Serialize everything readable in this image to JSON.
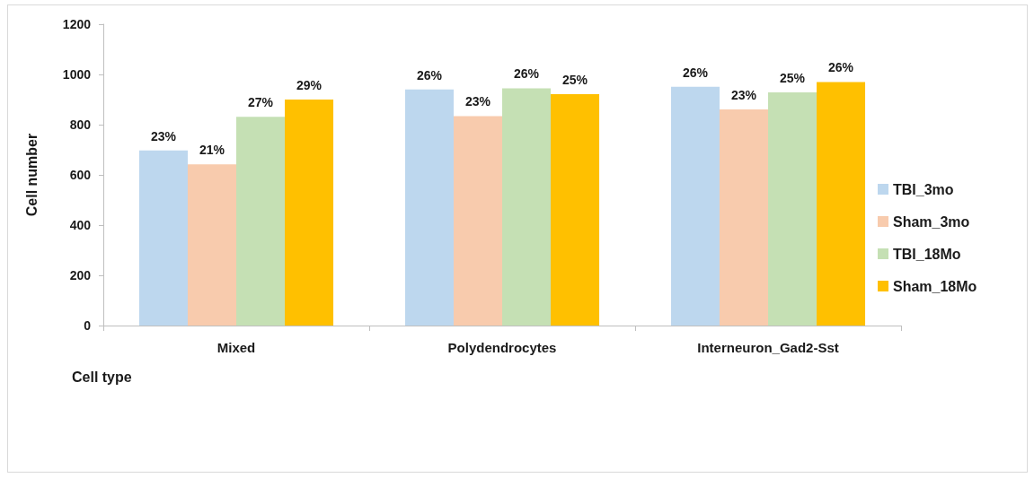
{
  "chart_data": {
    "type": "bar",
    "categories": [
      "Mixed",
      "Polydendrocytes",
      "Interneuron_Gad2-Sst"
    ],
    "xlabel": "Cell type",
    "ylabel": "Cell number",
    "ylim": [
      0,
      1200
    ],
    "yticks": [
      0,
      200,
      400,
      600,
      800,
      1000,
      1200
    ],
    "grid": false,
    "legend": "right",
    "series": [
      {
        "name": "TBI_3mo",
        "color": "#bdd7ee",
        "values": [
          697,
          940,
          951
        ]
      },
      {
        "name": "Sham_3mo",
        "color": "#f8cbad",
        "values": [
          642,
          834,
          861
        ]
      },
      {
        "name": "TBI_18Mo",
        "color": "#c5e0b4",
        "values": [
          831,
          945,
          929
        ]
      },
      {
        "name": "Sham_18Mo",
        "color": "#ffc000",
        "values": [
          900,
          921,
          970
        ]
      }
    ],
    "annotations": [
      "23%",
      "21%",
      "27%",
      "29%",
      "26%",
      "23%",
      "26%",
      "25%",
      "26%",
      "23%",
      "25%",
      "26%"
    ]
  }
}
